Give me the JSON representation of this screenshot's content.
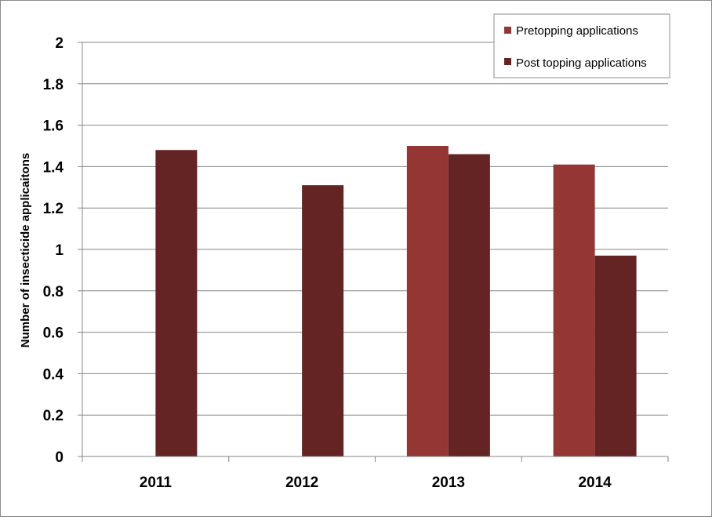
{
  "chart_data": {
    "type": "bar",
    "title": "",
    "xlabel": "",
    "ylabel": "Number of insecticide applicaitons",
    "ylim": [
      0,
      2
    ],
    "yticks": [
      "0",
      "0.2",
      "0.4",
      "0.6",
      "0.8",
      "1",
      "1.2",
      "1.4",
      "1.6",
      "1.8",
      "2"
    ],
    "categories": [
      "2011",
      "2012",
      "2013",
      "2014"
    ],
    "series": [
      {
        "name": "Pretopping applications",
        "color": "#943634",
        "values": [
          null,
          null,
          1.5,
          1.41
        ]
      },
      {
        "name": "Post topping applications",
        "color": "#632423",
        "values": [
          1.48,
          1.31,
          1.46,
          0.97
        ]
      }
    ],
    "grid": true,
    "legend_position": "top-right"
  }
}
